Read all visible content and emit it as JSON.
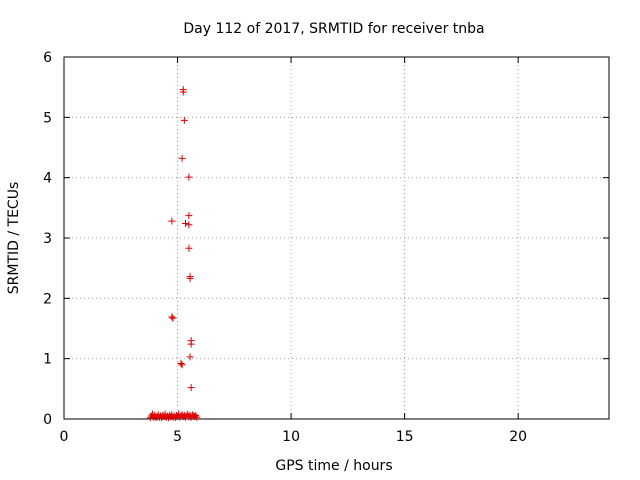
{
  "chart_data": {
    "type": "scatter",
    "title": "Day 112 of 2017, SRMTID for receiver tnba",
    "xlabel": "GPS time / hours",
    "ylabel": "SRMTID / TECUs",
    "xlim": [
      0,
      24
    ],
    "ylim": [
      0,
      6
    ],
    "xticks": [
      0,
      5,
      10,
      15,
      20
    ],
    "yticks": [
      0,
      1,
      2,
      3,
      4,
      5,
      6
    ],
    "grid": true,
    "marker": "plus",
    "color": "#dd0000",
    "series": [
      {
        "points": [
          [
            3.8,
            0.02
          ],
          [
            3.85,
            0.05
          ],
          [
            3.9,
            0.08
          ],
          [
            3.95,
            0.03
          ],
          [
            4.0,
            0.06
          ],
          [
            4.05,
            0.02
          ],
          [
            4.1,
            0.04
          ],
          [
            4.15,
            0.07
          ],
          [
            4.2,
            0.03
          ],
          [
            4.25,
            0.05
          ],
          [
            4.3,
            0.02
          ],
          [
            4.35,
            0.06
          ],
          [
            4.4,
            0.04
          ],
          [
            4.45,
            0.08
          ],
          [
            4.5,
            0.03
          ],
          [
            4.55,
            0.05
          ],
          [
            4.6,
            0.02
          ],
          [
            4.65,
            0.06
          ],
          [
            4.7,
            0.04
          ],
          [
            4.75,
            0.07
          ],
          [
            4.8,
            0.03
          ],
          [
            4.85,
            0.05
          ],
          [
            4.9,
            0.02
          ],
          [
            4.95,
            0.06
          ],
          [
            5.0,
            0.04
          ],
          [
            5.05,
            0.08
          ],
          [
            5.1,
            0.03
          ],
          [
            5.15,
            0.05
          ],
          [
            5.2,
            0.07
          ],
          [
            5.25,
            0.04
          ],
          [
            5.3,
            0.06
          ],
          [
            5.35,
            0.03
          ],
          [
            5.4,
            0.05
          ],
          [
            5.45,
            0.08
          ],
          [
            5.5,
            0.04
          ],
          [
            5.55,
            0.06
          ],
          [
            5.6,
            0.03
          ],
          [
            5.65,
            0.07
          ],
          [
            5.7,
            0.05
          ],
          [
            5.75,
            0.04
          ],
          [
            5.8,
            0.06
          ],
          [
            5.85,
            0.03
          ],
          [
            4.75,
            3.28
          ],
          [
            4.75,
            1.69
          ],
          [
            4.8,
            1.67
          ],
          [
            5.15,
            0.92
          ],
          [
            5.2,
            0.9
          ],
          [
            5.2,
            4.32
          ],
          [
            5.25,
            5.46
          ],
          [
            5.25,
            5.42
          ],
          [
            5.3,
            4.95
          ],
          [
            5.35,
            3.24
          ],
          [
            5.5,
            4.01
          ],
          [
            5.5,
            3.37
          ],
          [
            5.5,
            3.22
          ],
          [
            5.5,
            2.83
          ],
          [
            5.55,
            2.36
          ],
          [
            5.55,
            2.33
          ],
          [
            5.6,
            1.3
          ],
          [
            5.6,
            1.24
          ],
          [
            5.55,
            1.03
          ],
          [
            5.6,
            0.52
          ]
        ]
      }
    ]
  }
}
